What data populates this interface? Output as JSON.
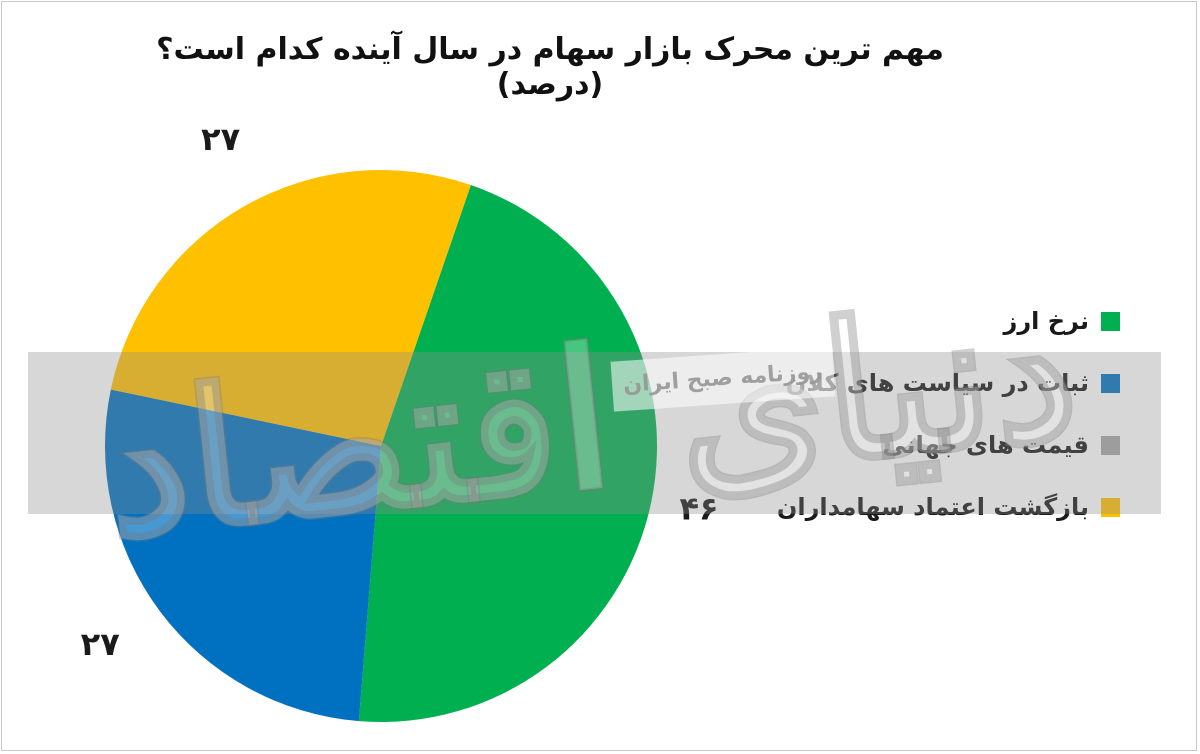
{
  "title": "مهم ترین محرک بازار سهام در سال آینده کدام است؟ (درصد)",
  "watermark": {
    "brand": "دنیای اقتصاد",
    "small_text": "روزنامه صبح ایران"
  },
  "colors": {
    "green": "#00b050",
    "blue": "#0070c0",
    "gray": "#a6a6a6",
    "yellow": "#ffc000"
  },
  "chart_data": {
    "type": "pie",
    "title": "مهم ترین محرک بازار سهام در سال آینده کدام است؟ (درصد)",
    "unit": "درصد",
    "legend_position": "right",
    "slices": [
      {
        "label": "نرخ ارز",
        "value": 46,
        "color": "#00b050",
        "data_label": "۴۶"
      },
      {
        "label": "ثبات در سیاست های کلان",
        "value": 27,
        "color": "#0070c0",
        "data_label": "۲۷"
      },
      {
        "label": "قیمت های جهانی",
        "value": 0,
        "color": "#a6a6a6",
        "data_label": ""
      },
      {
        "label": "بازگشت اعتماد سهامداران",
        "value": 27,
        "color": "#ffc000",
        "data_label": "۲۷"
      }
    ]
  }
}
